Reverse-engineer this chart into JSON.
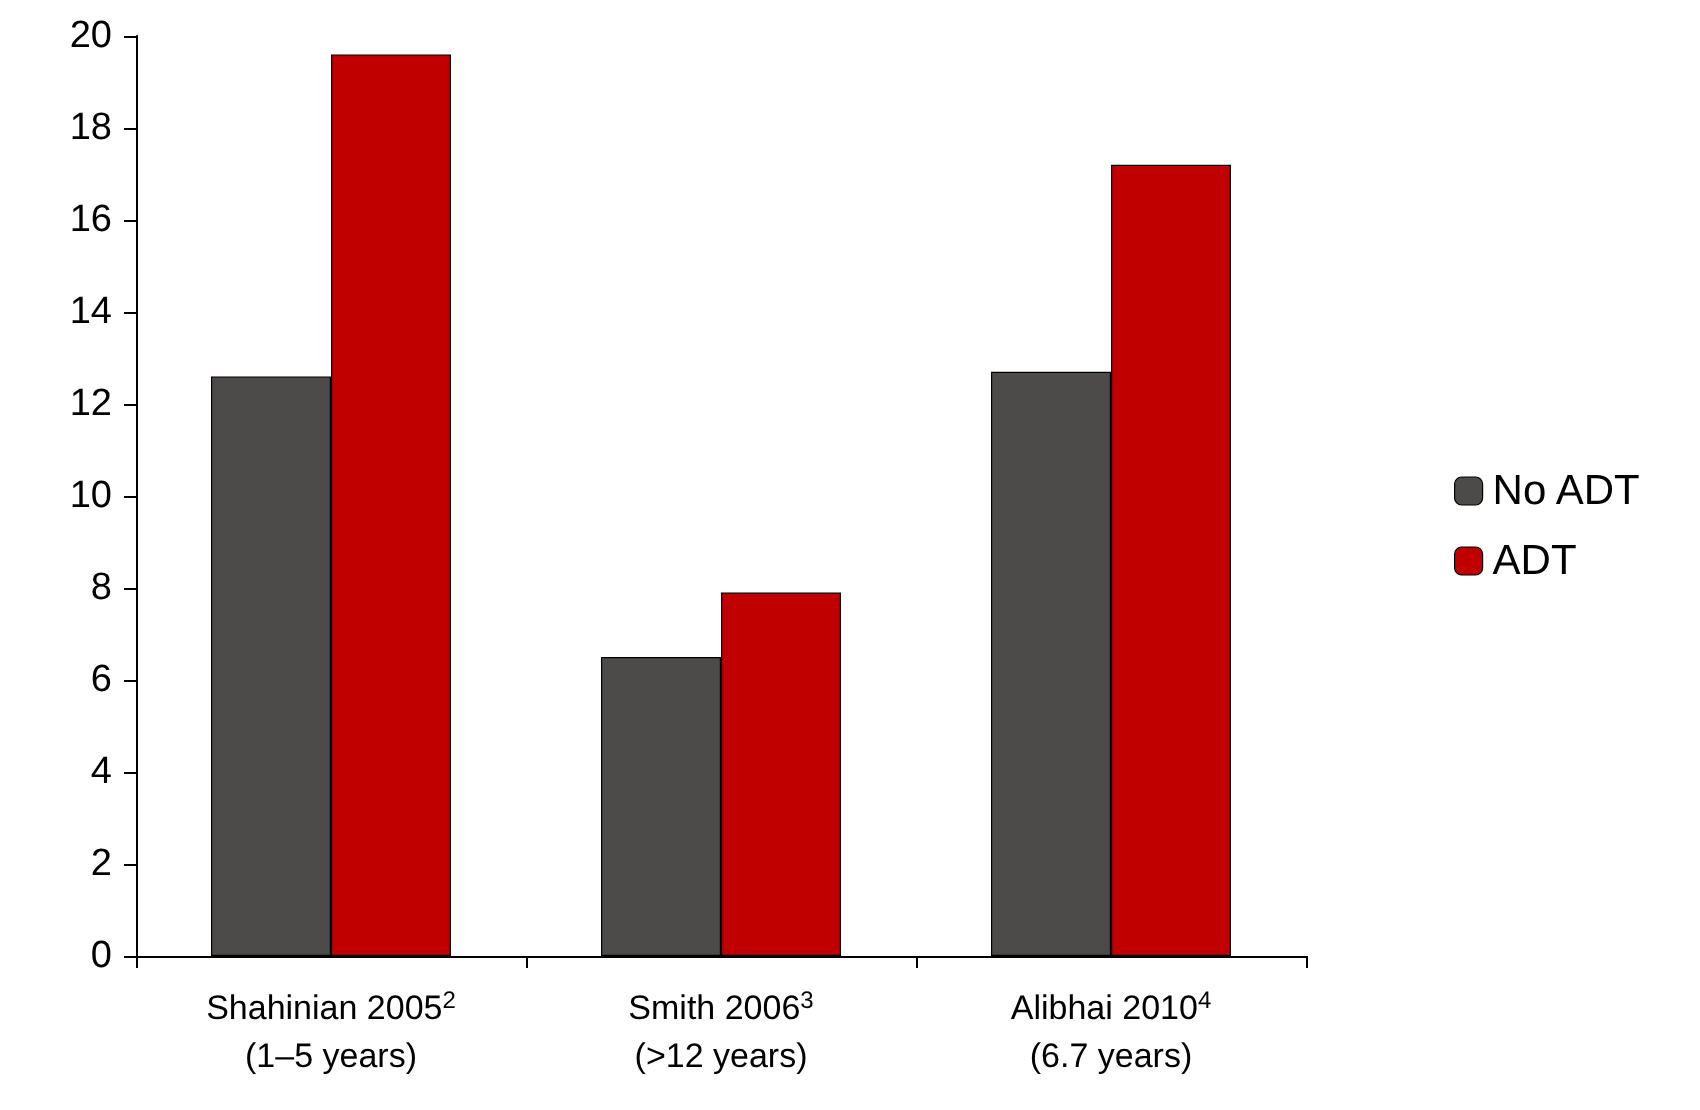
{
  "chart_data": {
    "type": "bar",
    "categories": [
      "Shahinian 2005$^{2}$\n(1–5 years)",
      "Smith 2006$^{3}$\n(>12 years)",
      "Alibhai 2010$^{4}$\n(6.7 years)"
    ],
    "series": [
      {
        "name": "No ADT",
        "color": "#4d4a4a",
        "values": [
          12.6,
          6.5,
          12.7
        ]
      },
      {
        "name": "ADT",
        "color": "#c00000",
        "values": [
          19.6,
          7.9,
          17.2
        ]
      }
    ],
    "ylim": [
      0,
      20
    ],
    "yticks": [
      0,
      2,
      4,
      6,
      8,
      10,
      12,
      14,
      16,
      18,
      20
    ],
    "grid": false,
    "legend": "right"
  }
}
